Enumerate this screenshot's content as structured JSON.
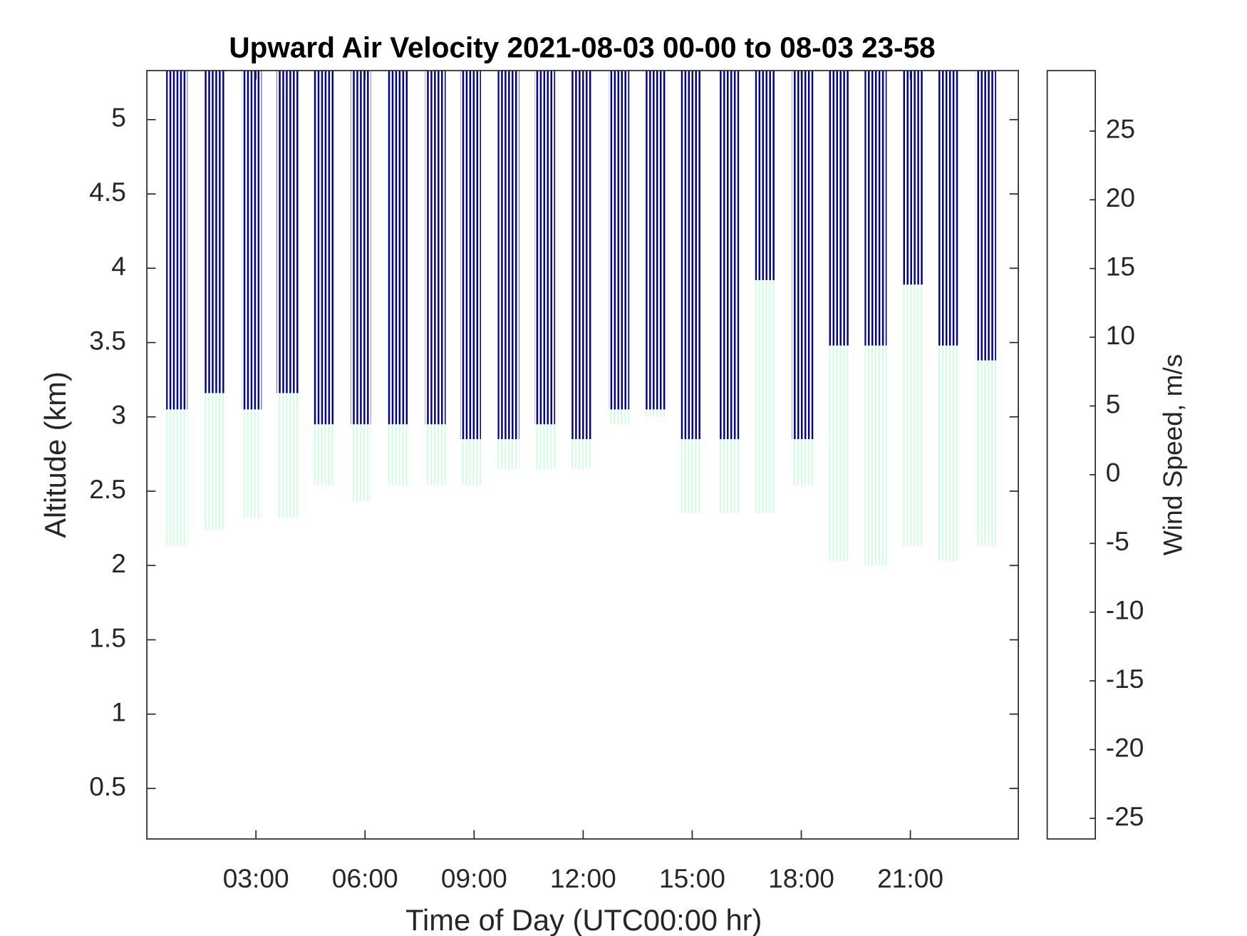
{
  "chart_data": {
    "type": "heatmap",
    "title": "Upward Air Velocity 2021-08-03 00-00 to 08-03 23-58",
    "xlabel": "Time of Day (UTC00:00 hr)",
    "ylabel": "Altitude (km)",
    "colorbar_label": "Wind Speed, m/s",
    "colormap": "jet",
    "xlim": [
      0,
      23.97
    ],
    "xticks": [
      {
        "value": 3,
        "label": "03:00"
      },
      {
        "value": 6,
        "label": "06:00"
      },
      {
        "value": 9,
        "label": "09:00"
      },
      {
        "value": 12,
        "label": "12:00"
      },
      {
        "value": 15,
        "label": "15:00"
      },
      {
        "value": 18,
        "label": "18:00"
      },
      {
        "value": 21,
        "label": "21:00"
      }
    ],
    "ylim": [
      0.16,
      5.33
    ],
    "yticks": [
      0.5,
      1,
      1.5,
      2,
      2.5,
      3,
      3.5,
      4,
      4.5,
      5
    ],
    "clim": [
      -26.5,
      29.4
    ],
    "cticks": [
      -25,
      -20,
      -15,
      -10,
      -5,
      0,
      5,
      10,
      15,
      20,
      25
    ],
    "bands": [
      {
        "start": 0.53,
        "end": 1.12,
        "dark_bottom": 3.05,
        "green_bottom": 2.13,
        "dark_value": -26,
        "green_value": 0
      },
      {
        "start": 1.56,
        "end": 2.13,
        "dark_bottom": 3.16,
        "green_bottom": 2.24,
        "dark_value": -26,
        "green_value": 0
      },
      {
        "start": 2.61,
        "end": 3.16,
        "dark_bottom": 3.05,
        "green_bottom": 2.32,
        "dark_value": -26,
        "green_value": 0
      },
      {
        "start": 3.57,
        "end": 4.19,
        "dark_bottom": 3.16,
        "green_bottom": 2.32,
        "dark_value": -26,
        "green_value": 0
      },
      {
        "start": 4.58,
        "end": 5.18,
        "dark_bottom": 2.95,
        "green_bottom": 2.54,
        "dark_value": -26,
        "green_value": 0
      },
      {
        "start": 5.61,
        "end": 6.16,
        "dark_bottom": 2.95,
        "green_bottom": 2.43,
        "dark_value": -26,
        "green_value": 0
      },
      {
        "start": 6.62,
        "end": 7.21,
        "dark_bottom": 2.95,
        "green_bottom": 2.54,
        "dark_value": -26,
        "green_value": 0
      },
      {
        "start": 7.65,
        "end": 8.22,
        "dark_bottom": 2.95,
        "green_bottom": 2.54,
        "dark_value": -26,
        "green_value": 0
      },
      {
        "start": 8.62,
        "end": 9.19,
        "dark_bottom": 2.85,
        "green_bottom": 2.54,
        "dark_value": -26,
        "green_value": 0
      },
      {
        "start": 9.65,
        "end": 10.24,
        "dark_bottom": 2.85,
        "green_bottom": 2.65,
        "dark_value": -26,
        "green_value": 0
      },
      {
        "start": 10.66,
        "end": 11.23,
        "dark_bottom": 2.95,
        "green_bottom": 2.65,
        "dark_value": -26,
        "green_value": 0
      },
      {
        "start": 11.67,
        "end": 12.26,
        "dark_bottom": 2.85,
        "green_bottom": 2.65,
        "dark_value": -26,
        "green_value": 0
      },
      {
        "start": 12.7,
        "end": 13.27,
        "dark_bottom": 3.05,
        "green_bottom": 2.95,
        "dark_value": -26,
        "green_value": 0
      },
      {
        "start": 13.68,
        "end": 14.28,
        "dark_bottom": 3.05,
        "green_bottom": 3.0,
        "dark_value": -26,
        "green_value": 0
      },
      {
        "start": 14.69,
        "end": 15.26,
        "dark_bottom": 2.85,
        "green_bottom": 2.35,
        "dark_value": -26,
        "green_value": 0
      },
      {
        "start": 15.72,
        "end": 16.29,
        "dark_bottom": 2.85,
        "green_bottom": 2.35,
        "dark_value": -26,
        "green_value": 0
      },
      {
        "start": 16.73,
        "end": 17.3,
        "dark_bottom": 3.92,
        "green_bottom": 2.35,
        "dark_value": -26,
        "green_value": 0
      },
      {
        "start": 17.74,
        "end": 18.33,
        "dark_bottom": 2.85,
        "green_bottom": 2.54,
        "dark_value": -26,
        "green_value": 0
      },
      {
        "start": 18.75,
        "end": 19.32,
        "dark_bottom": 3.48,
        "green_bottom": 2.03,
        "dark_value": -26,
        "green_value": 0
      },
      {
        "start": 19.74,
        "end": 20.35,
        "dark_bottom": 3.48,
        "green_bottom": 2.0,
        "dark_value": -26,
        "green_value": 0
      },
      {
        "start": 20.77,
        "end": 21.36,
        "dark_bottom": 3.89,
        "green_bottom": 2.13,
        "dark_value": -26,
        "green_value": 0
      },
      {
        "start": 21.75,
        "end": 22.35,
        "dark_bottom": 3.48,
        "green_bottom": 2.03,
        "dark_value": -26,
        "green_value": 0
      },
      {
        "start": 22.79,
        "end": 23.36,
        "dark_bottom": 3.38,
        "green_bottom": 2.13,
        "dark_value": -26,
        "green_value": 0
      }
    ]
  }
}
